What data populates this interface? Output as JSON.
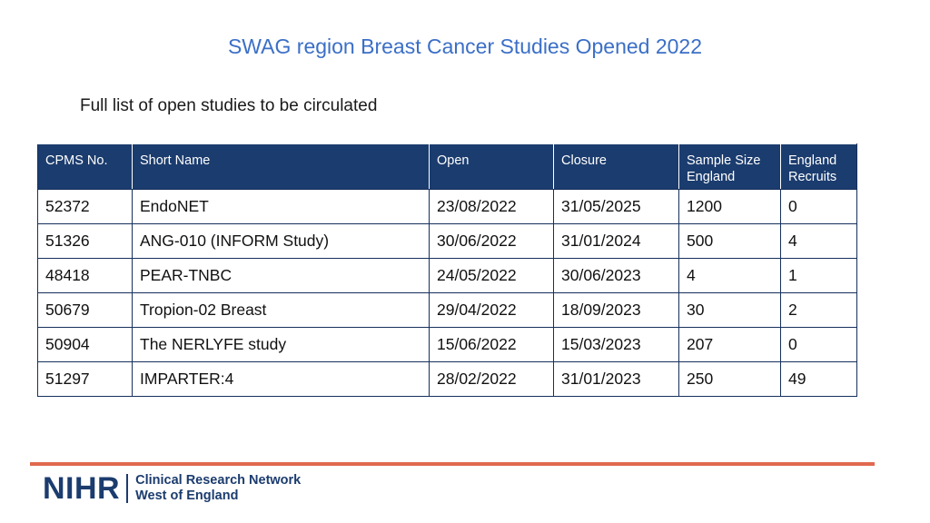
{
  "title": "SWAG region Breast Cancer Studies Opened 2022",
  "subtitle": "Full list of open studies to be circulated",
  "table": {
    "headers": [
      "CPMS No.",
      "Short Name",
      "Open",
      "Closure",
      "Sample Size England",
      "England Recruits"
    ],
    "rows": [
      [
        "52372",
        "EndoNET",
        "23/08/2022",
        "31/05/2025",
        "1200",
        "0"
      ],
      [
        "51326",
        "ANG-010 (INFORM Study)",
        "30/06/2022",
        "31/01/2024",
        "500",
        "4"
      ],
      [
        "48418",
        "PEAR-TNBC",
        "24/05/2022",
        "30/06/2023",
        "4",
        "1"
      ],
      [
        "50679",
        "Tropion-02 Breast",
        "29/04/2022",
        "18/09/2023",
        "30",
        "2"
      ],
      [
        "50904",
        "The NERLYFE study",
        "15/06/2022",
        "15/03/2023",
        "207",
        "0"
      ],
      [
        "51297",
        "IMPARTER:4",
        "28/02/2022",
        "31/01/2023",
        "250",
        "49"
      ]
    ]
  },
  "footer": {
    "logo_mark": "NIHR",
    "logo_line1": "Clinical Research Network",
    "logo_line2": "West of England"
  },
  "colors": {
    "title": "#3b6fc7",
    "header_bg": "#1b3c6e",
    "accent_rule": "#e0694f"
  }
}
